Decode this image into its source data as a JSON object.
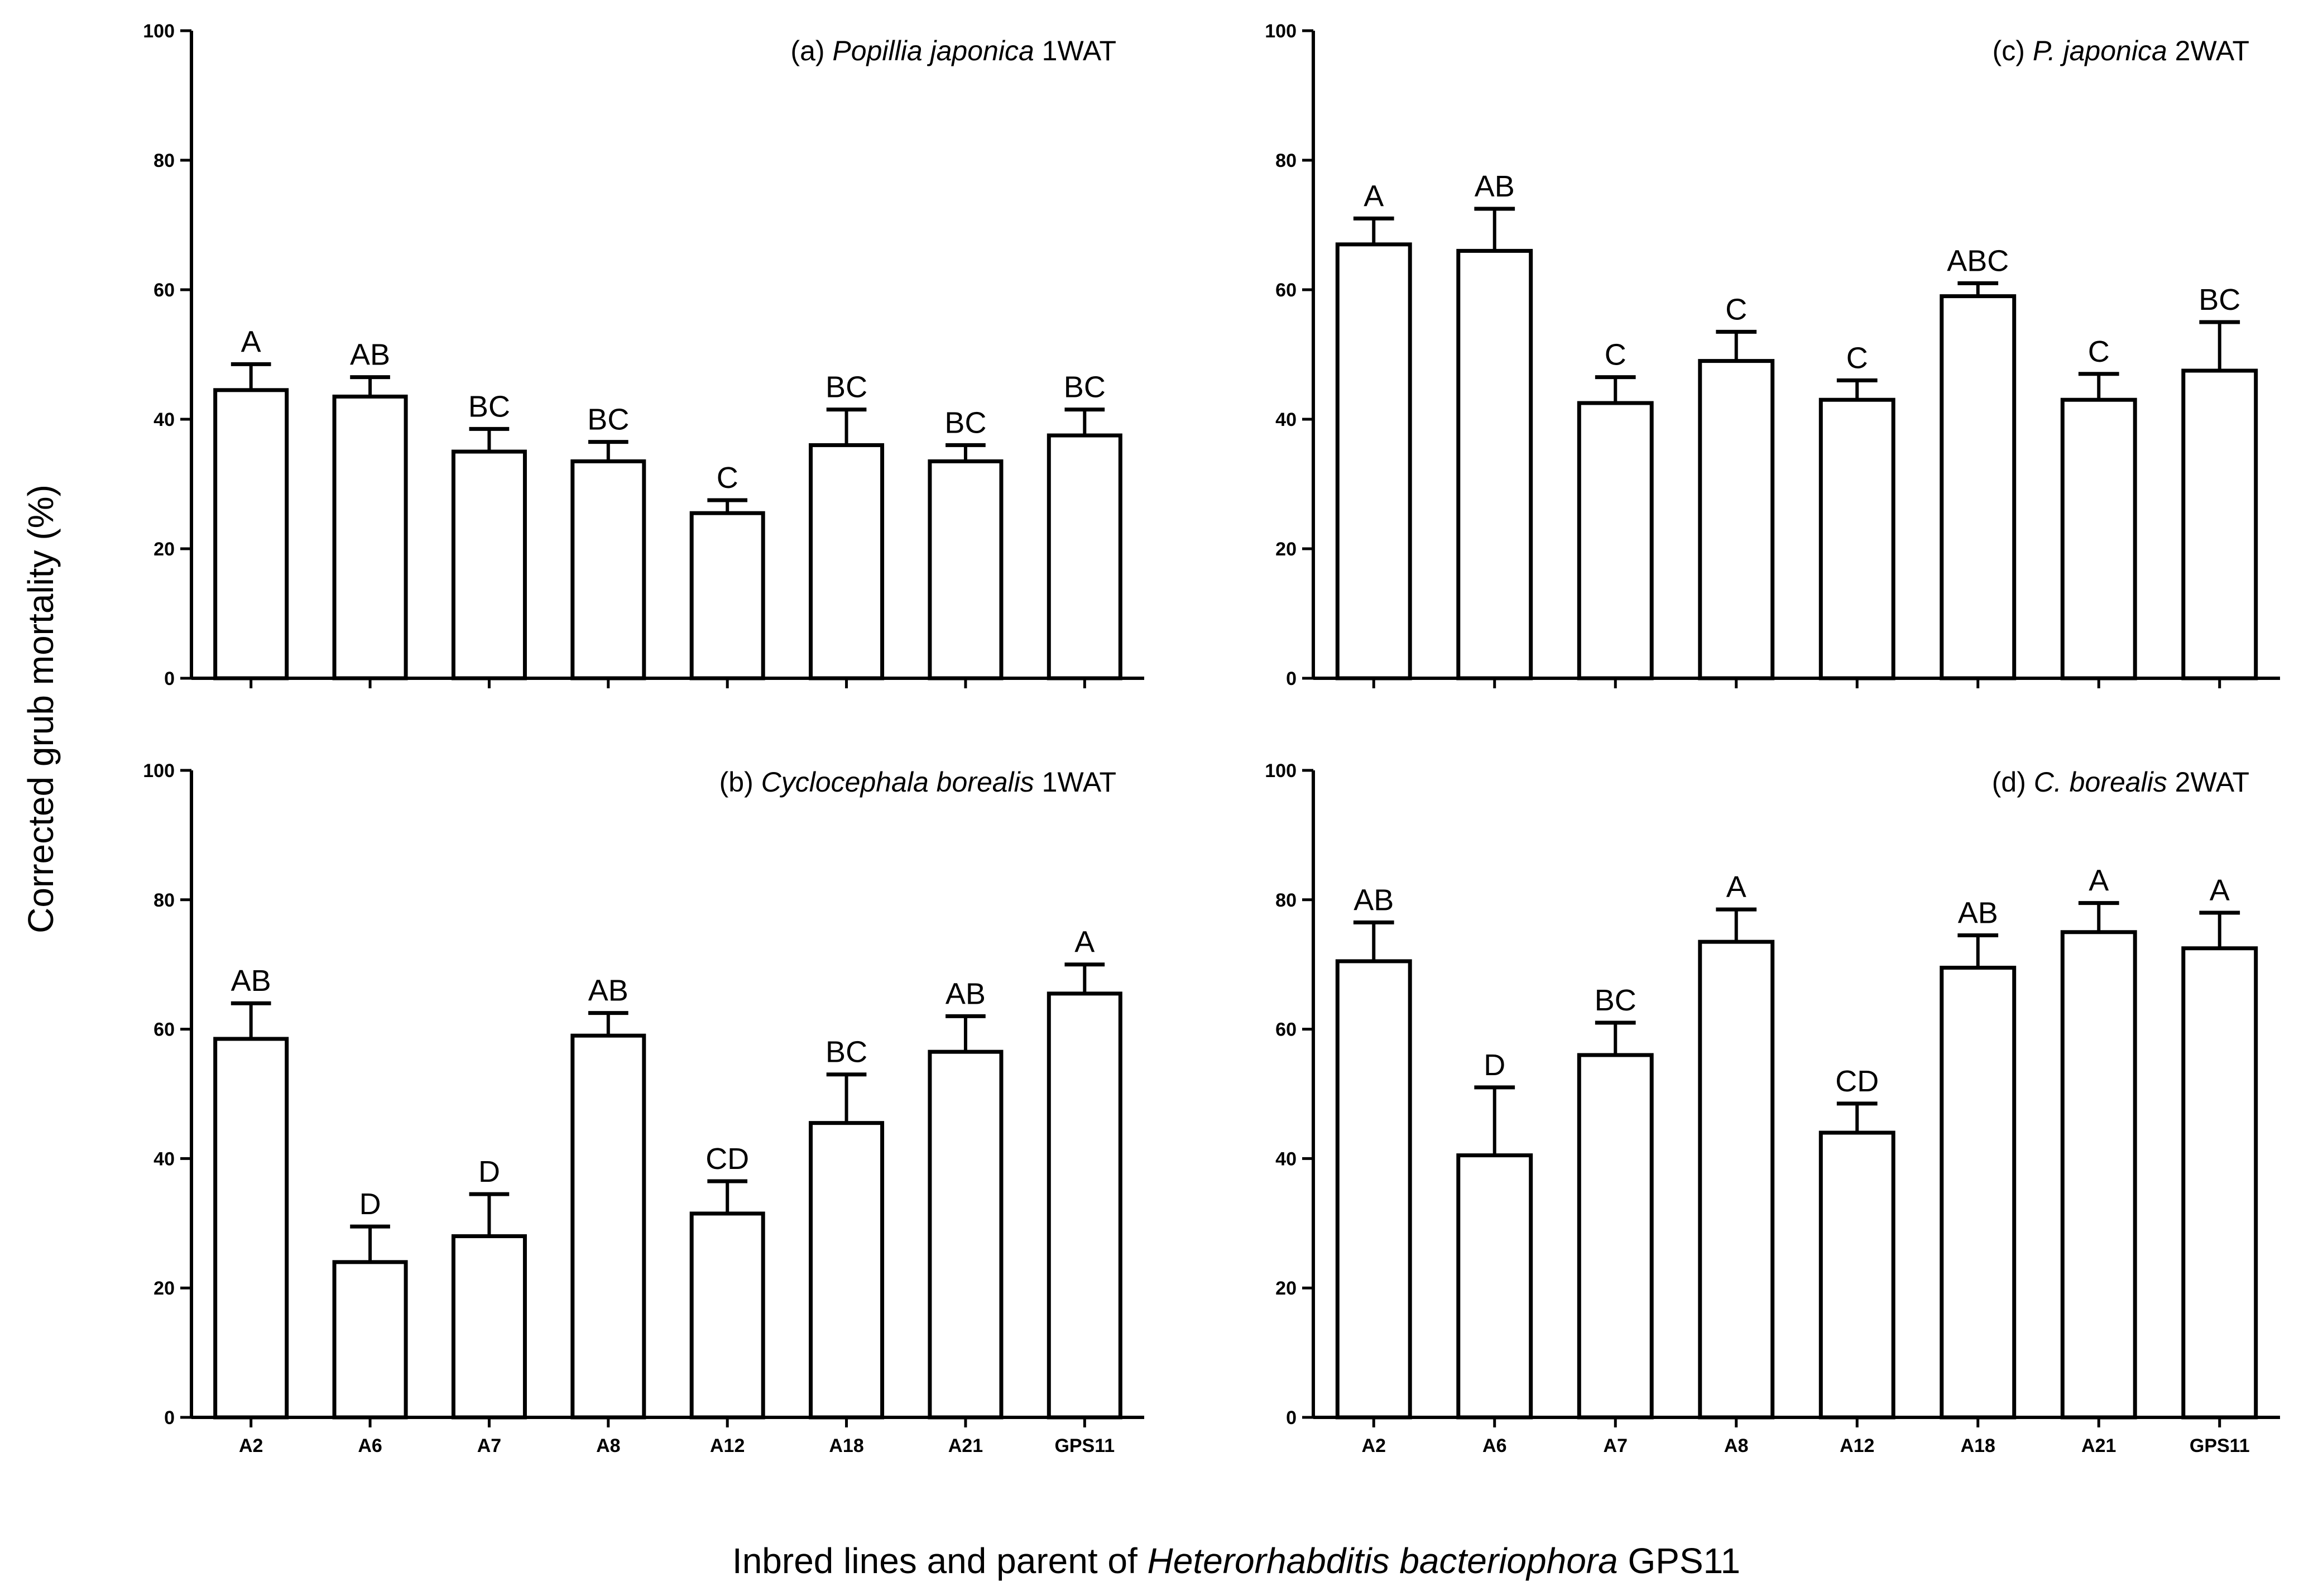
{
  "figure": {
    "ylabel": "Corrected grub mortality (%)",
    "xlabel": {
      "prefix": "Inbred lines and parent of ",
      "italic": "Heterorhabditis bacteriophora",
      "suffix": " GPS11"
    }
  },
  "chart_data": [
    {
      "id": "a",
      "type": "bar",
      "title": {
        "prefix": "(a) ",
        "italic": "Popillia japonica",
        "suffix": " 1WAT"
      },
      "categories": [
        "A2",
        "A6",
        "A7",
        "A8",
        "A12",
        "A18",
        "A21",
        "GPS11"
      ],
      "values": [
        44.5,
        43.5,
        35,
        33.5,
        25.5,
        36,
        33.5,
        37.5
      ],
      "errors": [
        4,
        3,
        3.5,
        3,
        2,
        5.5,
        2.5,
        4
      ],
      "letters": [
        "A",
        "AB",
        "BC",
        "BC",
        "C",
        "BC",
        "BC",
        "BC"
      ],
      "ylim": [
        0,
        100
      ],
      "yticks": [
        0,
        20,
        40,
        60,
        80,
        100
      ],
      "show_xticklabels": false
    },
    {
      "id": "b",
      "type": "bar",
      "title": {
        "prefix": "(b) ",
        "italic": "Cyclocephala borealis",
        "suffix": " 1WAT"
      },
      "categories": [
        "A2",
        "A6",
        "A7",
        "A8",
        "A12",
        "A18",
        "A21",
        "GPS11"
      ],
      "values": [
        58.5,
        24,
        28,
        59,
        31.5,
        45.5,
        56.5,
        65.5
      ],
      "errors": [
        5.5,
        5.5,
        6.5,
        3.5,
        5,
        7.5,
        5.5,
        4.5
      ],
      "letters": [
        "AB",
        "D",
        "D",
        "AB",
        "CD",
        "BC",
        "AB",
        "A"
      ],
      "ylim": [
        0,
        100
      ],
      "yticks": [
        0,
        20,
        40,
        60,
        80,
        100
      ],
      "show_xticklabels": true
    },
    {
      "id": "c",
      "type": "bar",
      "title": {
        "prefix": "(c) ",
        "italic": "P. japonica",
        "suffix": " 2WAT"
      },
      "categories": [
        "A2",
        "A6",
        "A7",
        "A8",
        "A12",
        "A18",
        "A21",
        "GPS11"
      ],
      "values": [
        67,
        66,
        42.5,
        49,
        43,
        59,
        43,
        47.5
      ],
      "errors": [
        4,
        6.5,
        4,
        4.5,
        3,
        2,
        4,
        7.5
      ],
      "letters": [
        "A",
        "AB",
        "C",
        "C",
        "C",
        "ABC",
        "C",
        "BC"
      ],
      "ylim": [
        0,
        100
      ],
      "yticks": [
        0,
        20,
        40,
        60,
        80,
        100
      ],
      "show_xticklabels": false
    },
    {
      "id": "d",
      "type": "bar",
      "title": {
        "prefix": "(d) ",
        "italic": "C. borealis",
        "suffix": " 2WAT"
      },
      "categories": [
        "A2",
        "A6",
        "A7",
        "A8",
        "A12",
        "A18",
        "A21",
        "GPS11"
      ],
      "values": [
        70.5,
        40.5,
        56,
        73.5,
        44,
        69.5,
        75,
        72.5
      ],
      "errors": [
        6,
        10.5,
        5,
        5,
        4.5,
        5,
        4.5,
        5.5
      ],
      "letters": [
        "AB",
        "D",
        "BC",
        "A",
        "CD",
        "AB",
        "A",
        "A"
      ],
      "ylim": [
        0,
        100
      ],
      "yticks": [
        0,
        20,
        40,
        60,
        80,
        100
      ],
      "show_xticklabels": true
    }
  ]
}
